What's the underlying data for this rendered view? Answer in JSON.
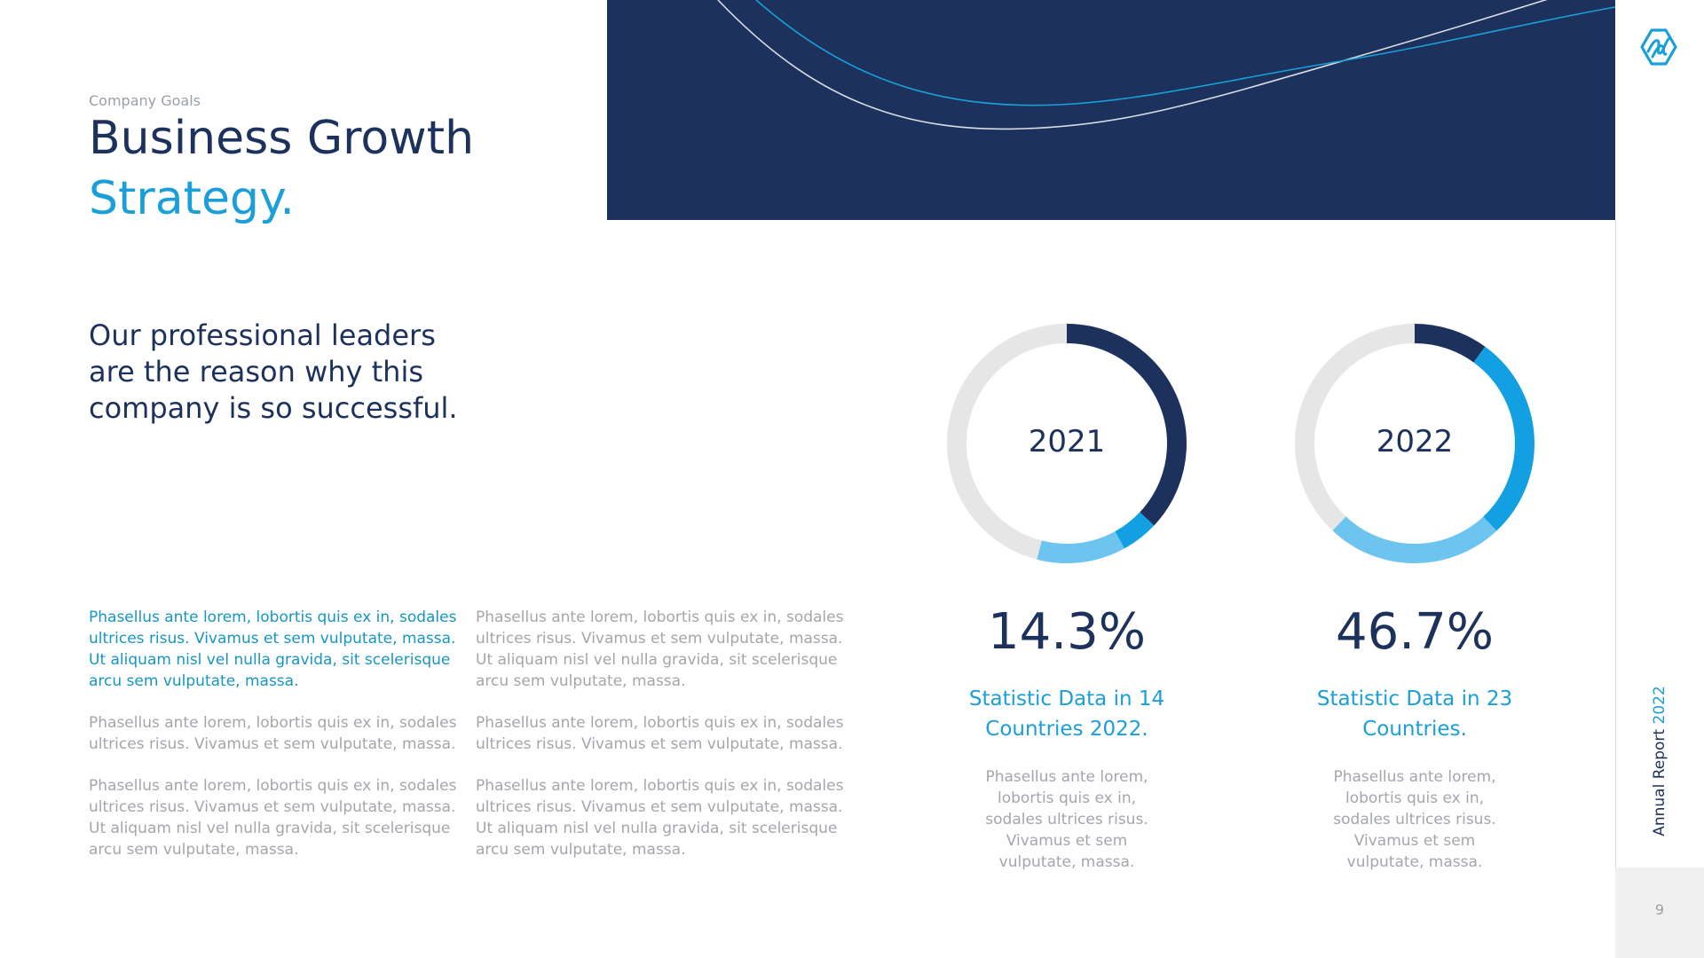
{
  "header": {
    "eyebrow": "Company Goals",
    "title_line1": "Business Growth",
    "title_line2": "Strategy.",
    "lead": "Our professional leaders are the reason why this company is so successful."
  },
  "rail": {
    "label_main": "Annual Report ",
    "label_accent": "2022",
    "page_number": "9",
    "logo_icon": "wave-hexagon-logo-icon"
  },
  "paragraphs": {
    "col1": [
      "Phasellus ante lorem, lobortis quis ex in, sodales ultrices risus. Vivamus et sem vulputate,  massa. Ut aliquam nisl vel nulla gravida, sit scelerisque arcu sem vulputate,  massa.",
      "Phasellus ante lorem, lobortis quis ex in, sodales ultrices risus. Vivamus et sem vulputate,  massa.",
      "Phasellus ante lorem, lobortis quis ex in, sodales ultrices risus. Vivamus et sem vulputate,  massa. Ut aliquam nisl vel nulla gravida, sit scelerisque arcu sem vulputate,  massa."
    ],
    "col2": [
      "Phasellus ante lorem, lobortis quis ex in, sodales ultrices risus. Vivamus et sem vulputate,  massa. Ut aliquam nisl vel nulla gravida, sit scelerisque arcu sem vulputate,  massa.",
      "Phasellus ante lorem, lobortis quis ex in, sodales ultrices risus. Vivamus et sem vulputate,  massa.",
      "Phasellus ante lorem, lobortis quis ex in, sodales ultrices risus. Vivamus et sem vulputate,  massa. Ut aliquam nisl vel nulla gravida, sit scelerisque arcu sem vulputate,  massa."
    ]
  },
  "colors": {
    "navy": "#1c315c",
    "blue": "#12a0e3",
    "light_blue": "#6cc4ef",
    "track": "#e6e6e6"
  },
  "chart_data": [
    {
      "type": "pie",
      "donut": true,
      "center_label": "2021",
      "big_value": "14.3%",
      "stat_title": "Statistic Data in 14 Countries 2022.",
      "description": "Phasellus ante lorem, lobortis quis ex in, sodales ultrices risus. Vivamus et sem vulputate,  massa.",
      "segments": [
        {
          "color": "#1c315c",
          "value": 37
        },
        {
          "color": "#12a0e3",
          "value": 5
        },
        {
          "color": "#6cc4ef",
          "value": 12
        },
        {
          "color": "#e6e6e6",
          "value": 46
        }
      ]
    },
    {
      "type": "pie",
      "donut": true,
      "center_label": "2022",
      "big_value": "46.7%",
      "stat_title": "Statistic Data in 23 Countries.",
      "description": "Phasellus ante lorem, lobortis quis ex in, sodales ultrices risus. Vivamus et sem vulputate,  massa.",
      "segments": [
        {
          "color": "#1c315c",
          "value": 10
        },
        {
          "color": "#12a0e3",
          "value": 28
        },
        {
          "color": "#6cc4ef",
          "value": 24
        },
        {
          "color": "#e6e6e6",
          "value": 38
        }
      ]
    }
  ]
}
